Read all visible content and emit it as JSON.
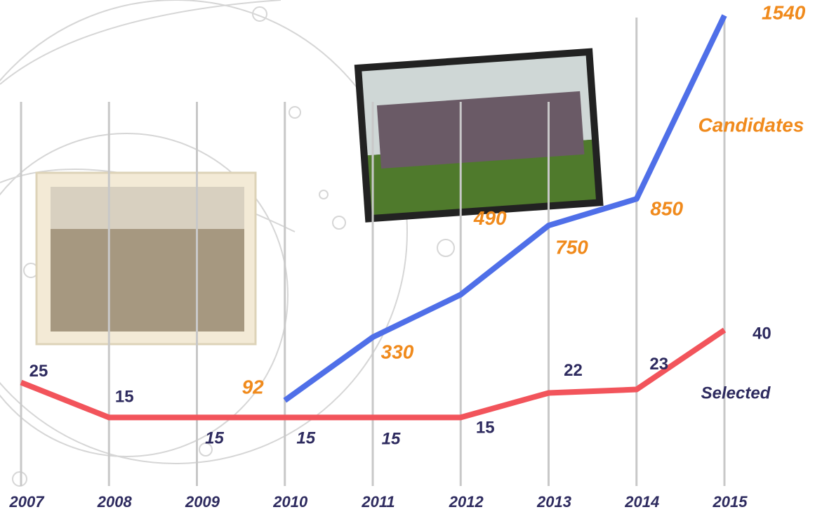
{
  "chart_data": {
    "type": "line",
    "categories": [
      "2007",
      "2008",
      "2009",
      "2010",
      "2011",
      "2012",
      "2013",
      "2014",
      "2015"
    ],
    "series": [
      {
        "name": "Candidates",
        "color": "#4f6fe8",
        "values": [
          null,
          null,
          null,
          92,
          330,
          490,
          750,
          850,
          1540
        ]
      },
      {
        "name": "Selected",
        "color": "#f2545b",
        "axis": "y2",
        "values": [
          25,
          15,
          15,
          15,
          15,
          15,
          22,
          23,
          40
        ]
      }
    ],
    "ylim": [
      0,
      1540
    ],
    "y2lim": [
      0,
      130
    ]
  }
}
